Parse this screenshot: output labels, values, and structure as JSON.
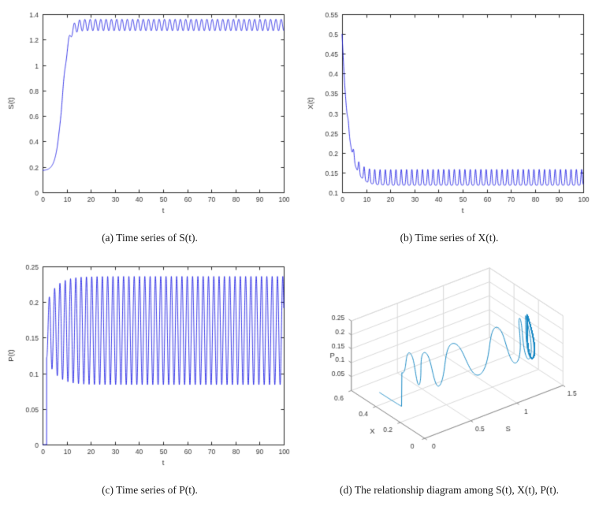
{
  "style": {
    "line_color_2d": "#0000e0",
    "line_color_3d": "#1486c2",
    "axis_color": "#262626",
    "tick_color": "#333333",
    "axis3d_color": "#8a8a8a",
    "grid_color_3d": "#d8d8d8",
    "background": "#ffffff"
  },
  "chart_data": [
    {
      "id": "a",
      "type": "line",
      "caption": "(a) Time series of S(t).",
      "xlabel": "t",
      "ylabel": "S(t)",
      "xlim": [
        0,
        100
      ],
      "ylim": [
        0,
        1.4
      ],
      "xticks": [
        0,
        10,
        20,
        30,
        40,
        50,
        60,
        70,
        80,
        90,
        100
      ],
      "yticks": [
        0,
        0.2,
        0.4,
        0.6,
        0.8,
        1,
        1.2,
        1.4
      ],
      "description": "S starts near 0.17, rises sigmoidally between t~4 and t~14 up to ~1.32, then sustains small oscillations between ~1.27 and ~1.36 with period ~2.2 until t=100.",
      "model": {
        "kind": "rise_osc",
        "start": 0.17,
        "plateau": 1.315,
        "rise_center": 8.2,
        "rise_width": 2.6,
        "osc_amp": 0.045,
        "osc_period": 2.2,
        "osc_onset": 6,
        "osc_ramp": 8,
        "dt": 0.04,
        "t_end": 100
      }
    },
    {
      "id": "b",
      "type": "line",
      "caption": "(b) Time series of X(t).",
      "xlabel": "t",
      "ylabel": "X(t)",
      "xlim": [
        0,
        100
      ],
      "ylim": [
        0.1,
        0.55
      ],
      "xticks": [
        0,
        10,
        20,
        30,
        40,
        50,
        60,
        70,
        80,
        90,
        100
      ],
      "yticks": [
        0.1,
        0.15,
        0.2,
        0.25,
        0.3,
        0.35,
        0.4,
        0.45,
        0.5,
        0.55
      ],
      "description": "X starts near 0.5, decays rapidly to ~0.12 by t~10, then shows periodic upward spikes to ~0.155 above a baseline ~0.118 with period ~2.2.",
      "model": {
        "kind": "decay_spikes",
        "init": 0.5,
        "base": 0.118,
        "tau": 2.7,
        "spike_amp": 0.04,
        "period": 2.2,
        "spike_sharpness": 3,
        "spike_onset": 2,
        "ramp": 5,
        "dt": 0.04,
        "t_end": 100
      }
    },
    {
      "id": "c",
      "type": "line",
      "caption": "(c) Time series of P(t).",
      "xlabel": "t",
      "ylabel": "P(t)",
      "xlim": [
        0,
        100
      ],
      "ylim": [
        0,
        0.25
      ],
      "xticks": [
        0,
        10,
        20,
        30,
        40,
        50,
        60,
        70,
        80,
        90,
        100
      ],
      "yticks": [
        0,
        0.05,
        0.1,
        0.15,
        0.2,
        0.25
      ],
      "description": "P stays at 0 until t~1.7, then oscillates rapidly between ~0.085 and ~0.235 (mean ~0.16, period ~2.2) for the rest of the run.",
      "model": {
        "kind": "delayed_osc",
        "onset": 1.7,
        "mean": 0.16,
        "amp": 0.076,
        "period": 2.2,
        "env_dip": 0.5,
        "ramp": 4,
        "dt": 0.02,
        "t_end": 100
      }
    },
    {
      "id": "d",
      "type": "line3d",
      "caption": "(d) The relationship diagram among S(t), X(t), P(t).",
      "xlabel": "S",
      "ylabel": "X",
      "zlabel": "P",
      "xlim": [
        0,
        1.5
      ],
      "ylim": [
        0,
        0.6
      ],
      "zlim": [
        0,
        0.25
      ],
      "xticks": [
        0,
        0.5,
        1,
        1.5
      ],
      "yticks": [
        0,
        0.2,
        0.4,
        0.6
      ],
      "zticks": [
        0.05,
        0.1,
        0.15,
        0.2,
        0.25
      ],
      "view": {
        "azimuth_deg": -37.5,
        "elevation_deg": 30
      },
      "description": "Phase trajectory (S(t), X(t), P(t)) starting near (0.17, 0.5, 0) and converging onto a sawtooth limit cycle near S~1.3, X~0.12-0.16, P~0.085-0.235.",
      "source_series": [
        0,
        1,
        2
      ]
    }
  ]
}
